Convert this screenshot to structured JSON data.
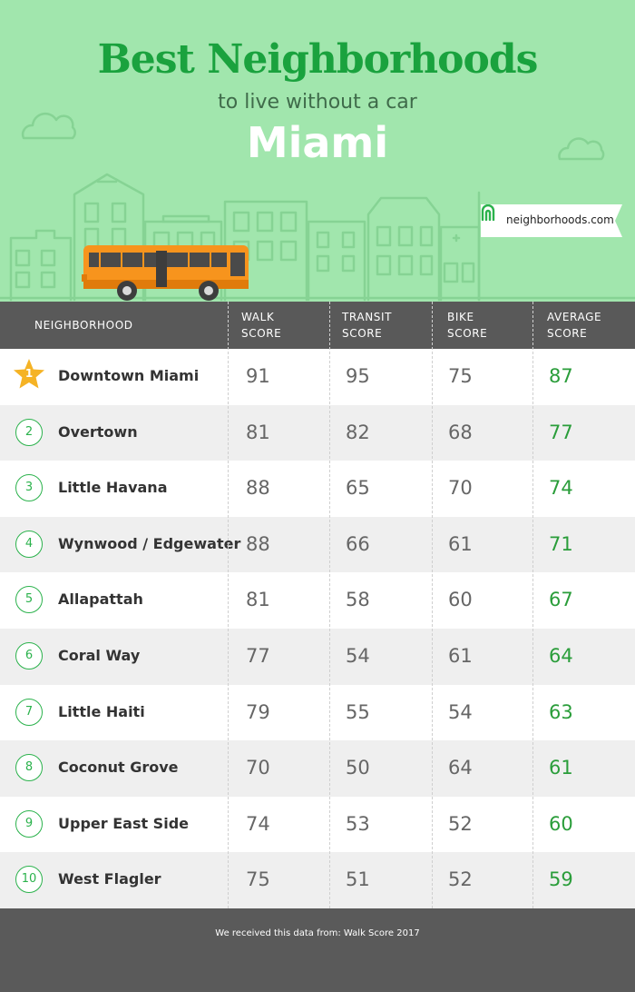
{
  "header": {
    "title": "Best Neighborhoods",
    "subtitle": "to live without a car",
    "city": "Miami",
    "logo_text": "neighborhoods.com"
  },
  "colors": {
    "hero_bg": "#a1e6ad",
    "title_green": "#1aa23e",
    "accent_green": "#2bb24c",
    "header_bar": "#595959",
    "star_gold": "#f5b325",
    "bus_orange": "#f7941d"
  },
  "table": {
    "columns": {
      "neighborhood": "NEIGHBORHOOD",
      "walk": [
        "WALK",
        "SCORE"
      ],
      "transit": [
        "TRANSIT",
        "SCORE"
      ],
      "bike": [
        "BIKE",
        "SCORE"
      ],
      "average": [
        "AVERAGE",
        "SCORE"
      ]
    },
    "rows": [
      {
        "rank": "1",
        "name": "Downtown Miami",
        "walk": "91",
        "transit": "95",
        "bike": "75",
        "average": "87",
        "icon": "star-icon"
      },
      {
        "rank": "2",
        "name": "Overtown",
        "walk": "81",
        "transit": "82",
        "bike": "68",
        "average": "77"
      },
      {
        "rank": "3",
        "name": "Little Havana",
        "walk": "88",
        "transit": "65",
        "bike": "70",
        "average": "74"
      },
      {
        "rank": "4",
        "name": "Wynwood / Edgewater",
        "walk": "88",
        "transit": "66",
        "bike": "61",
        "average": "71"
      },
      {
        "rank": "5",
        "name": "Allapattah",
        "walk": "81",
        "transit": "58",
        "bike": "60",
        "average": "67"
      },
      {
        "rank": "6",
        "name": "Coral Way",
        "walk": "77",
        "transit": "54",
        "bike": "61",
        "average": "64"
      },
      {
        "rank": "7",
        "name": "Little Haiti",
        "walk": "79",
        "transit": "55",
        "bike": "54",
        "average": "63"
      },
      {
        "rank": "8",
        "name": "Coconut Grove",
        "walk": "70",
        "transit": "50",
        "bike": "64",
        "average": "61"
      },
      {
        "rank": "9",
        "name": "Upper East Side",
        "walk": "74",
        "transit": "53",
        "bike": "52",
        "average": "60"
      },
      {
        "rank": "10",
        "name": "West Flagler",
        "walk": "75",
        "transit": "51",
        "bike": "52",
        "average": "59"
      }
    ]
  },
  "footer": {
    "source_text": "We received this data from: Walk Score 2017"
  }
}
